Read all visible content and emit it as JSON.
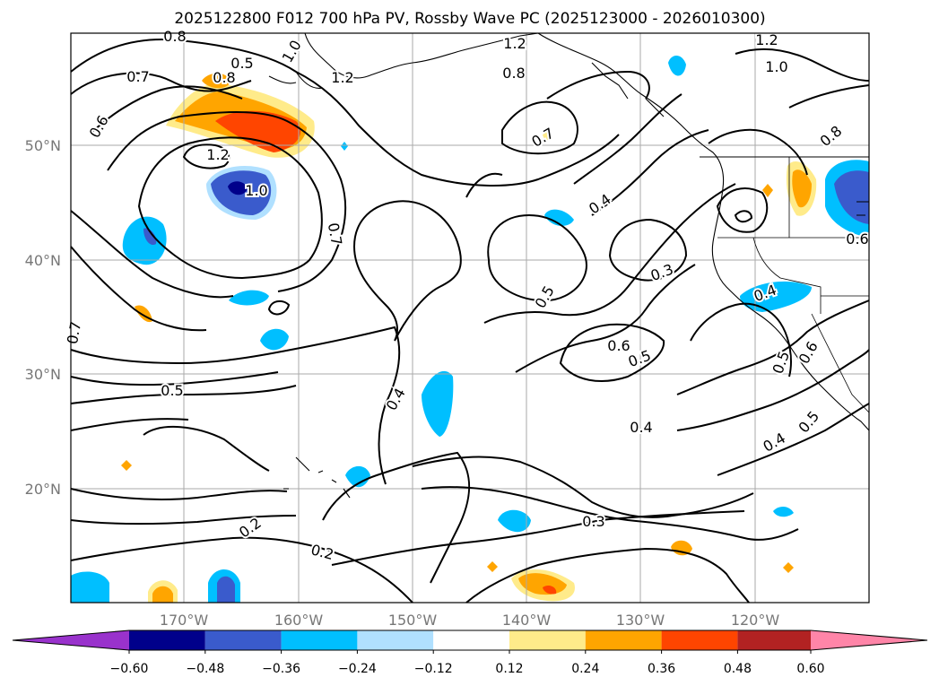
{
  "title": "2025122800 F012 700 hPa PV, Rossby Wave PC (2025123000 - 2026010300)",
  "lat_labels": [
    "50°N",
    "40°N",
    "30°N",
    "20°N"
  ],
  "lon_labels": [
    "170°W",
    "160°W",
    "150°W",
    "140°W",
    "130°W",
    "120°W"
  ],
  "colorbar": {
    "tick_labels": [
      "−0.60",
      "−0.48",
      "−0.36",
      "−0.24",
      "−0.12",
      "0.12",
      "0.24",
      "0.36",
      "0.48",
      "0.60"
    ],
    "colors": [
      "#9932cc",
      "#00008b",
      "#3a5bcc",
      "#00bfff",
      "#b0e0ff",
      "#ffffff",
      "#ffeb8a",
      "#ffa500",
      "#ff4500",
      "#b22222",
      "#ff85a8"
    ]
  },
  "contour_labels": [
    "0.8",
    "0.7",
    "0.5",
    "1.0",
    "1.2",
    "1.2",
    "0.8",
    "1.2",
    "1.0",
    "0.6",
    "0.8",
    "1.2",
    "1.0",
    "0.7",
    "0.7",
    "0.4",
    "0.5",
    "0.3",
    "0.8",
    "0.6",
    "0.6",
    "0.5",
    "0.4",
    "0.4",
    "0.5",
    "0.6",
    "0.7",
    "0.5",
    "0.4",
    "0.5",
    "0.4",
    "0.2",
    "0.3",
    "0.2"
  ]
}
